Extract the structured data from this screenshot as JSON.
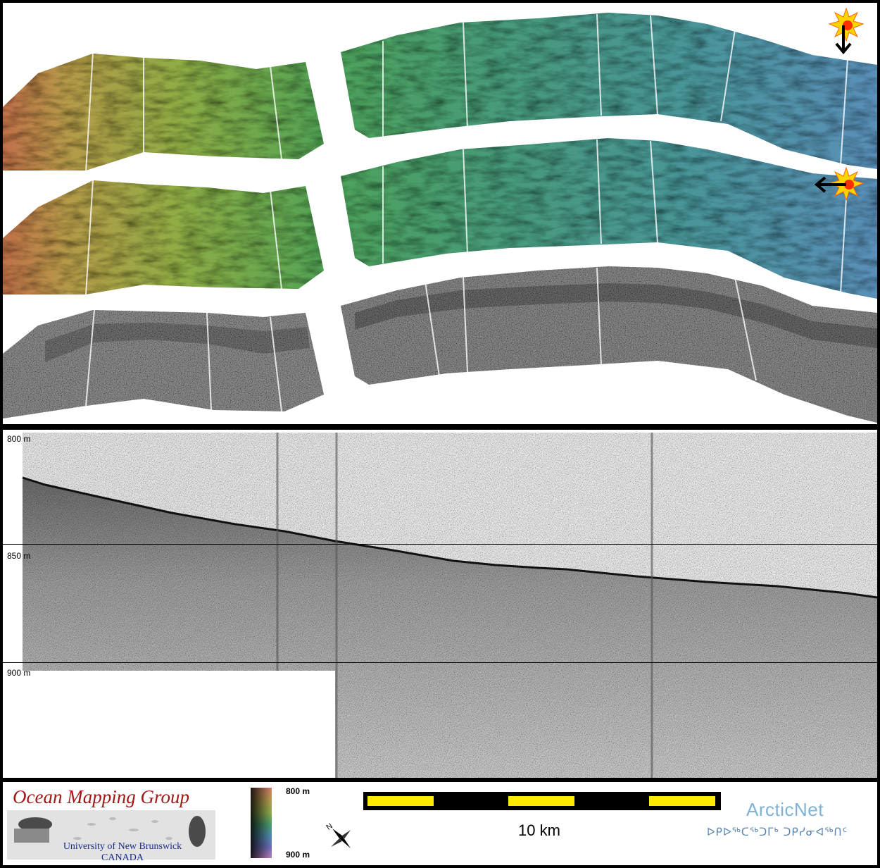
{
  "depth_labels": [
    "800 m",
    "850 m",
    "900 m"
  ],
  "colorbar": {
    "top_label": "800 m",
    "bottom_label": "900 m"
  },
  "scale_bar": {
    "label": "10 km"
  },
  "logo": {
    "title": "Ocean Mapping Group",
    "line1": "University of New Brunswick",
    "line2": "CANADA"
  },
  "arcticnet": {
    "name": "ArcticNet",
    "inuktitut": "ᐅᑭᐅᖅᑕᖅᑐᒥᒃ ᑐᑭᓯᓂᐊᖅᑎᑦ"
  },
  "icons": [
    "sun-illumination-icon",
    "north-arrow-icon"
  ],
  "colors": {
    "colormap": [
      "#d9806a",
      "#b9a050",
      "#8fb050",
      "#4fa070",
      "#5090b0",
      "#7070c0",
      "#c080c0"
    ],
    "scale_bar_fill": "#ffea00",
    "logo_red": "#a01818",
    "arcticnet_blue": "#7fb3d6"
  }
}
